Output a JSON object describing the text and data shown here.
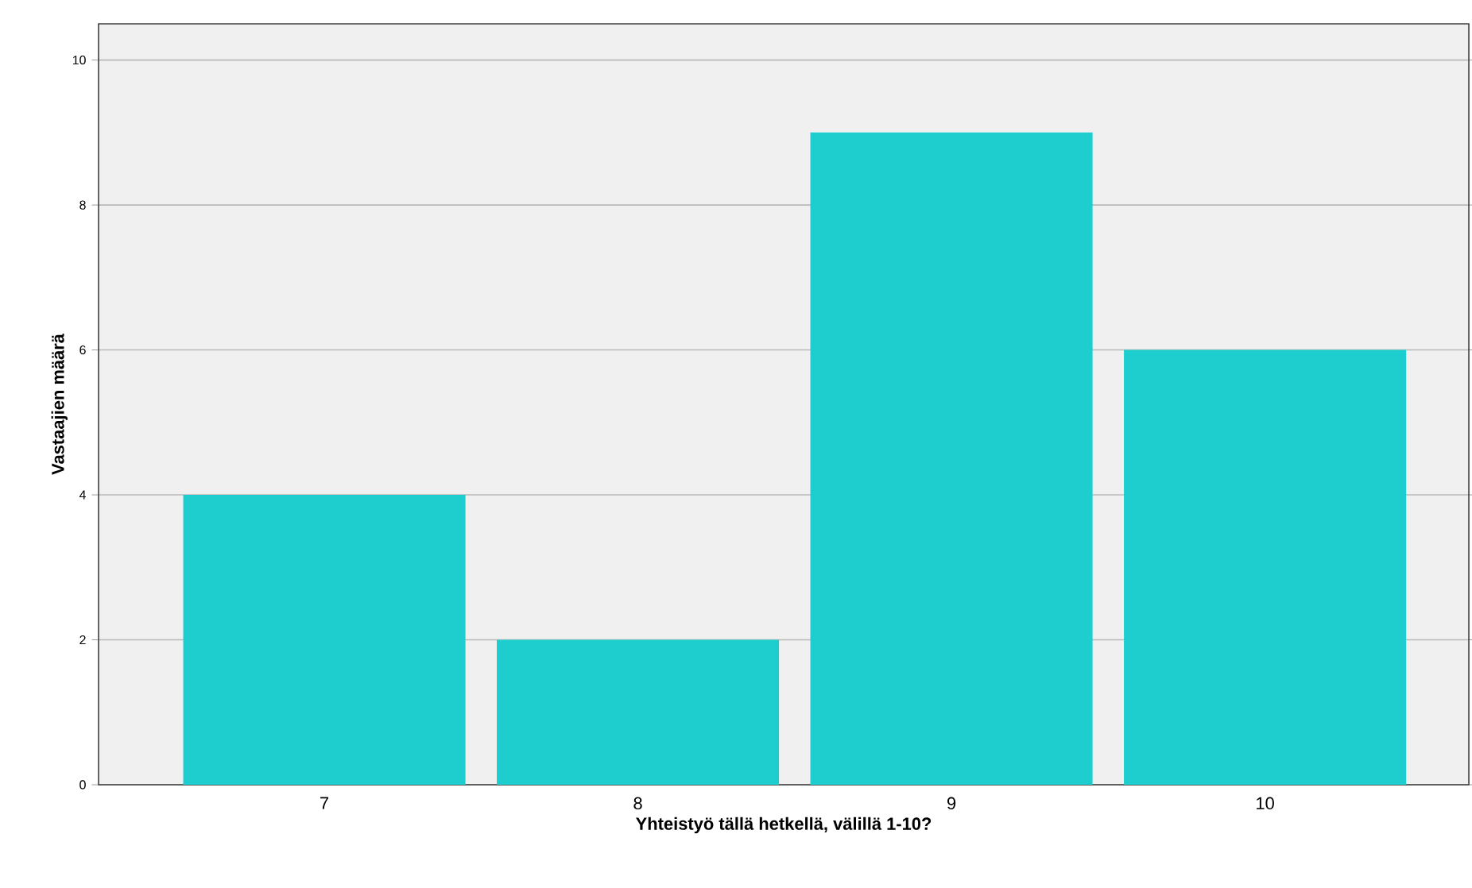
{
  "chart_data": {
    "type": "bar",
    "xlabel": "Yhteistyö tällä hetkellä, välillä 1-10?",
    "ylabel": "Vastaajien määrä",
    "categories": [
      "7",
      "8",
      "9",
      "10"
    ],
    "values": [
      4,
      2,
      9,
      6
    ],
    "color": "#1ecdcd",
    "ylim": [
      0,
      10.5
    ],
    "yticks": [
      0,
      2,
      4,
      6,
      8,
      10
    ],
    "grid": "y"
  }
}
